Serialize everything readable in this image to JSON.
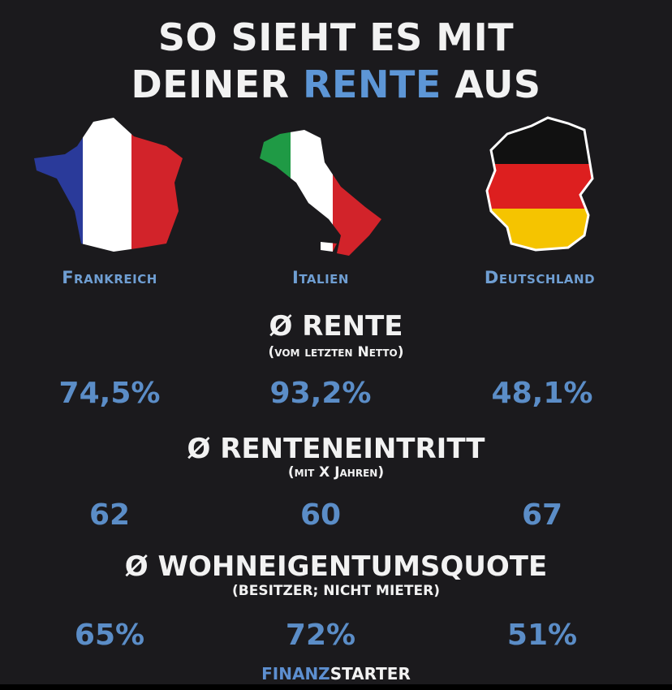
{
  "title": {
    "line1": "SO SIEHT ES MIT",
    "line2_prefix": "DEINER ",
    "line2_accent": "RENTE",
    "line2_suffix": " AUS"
  },
  "colors": {
    "background": "#1b1a1d",
    "accent": "#5d96d6",
    "value": "#5b8dc7"
  },
  "countries": [
    {
      "name": "Frankreich",
      "icon": "france-flag-map"
    },
    {
      "name": "Italien",
      "icon": "italy-flag-map"
    },
    {
      "name": "Deutschland",
      "icon": "germany-flag-map"
    }
  ],
  "sections": [
    {
      "title": "Ø RENTE",
      "subtitle": "(vom letzten Netto)",
      "values": [
        "74,5%",
        "93,2%",
        "48,1%"
      ]
    },
    {
      "title": "Ø RENTENEINTRITT",
      "subtitle": "(mit X Jahren)",
      "values": [
        "62",
        "60",
        "67"
      ]
    },
    {
      "title": "Ø WOHNEIGENTUMSQUOTE",
      "subtitle": "(BESITZER; NICHT MIETER)",
      "values": [
        "65%",
        "72%",
        "51%"
      ]
    }
  ],
  "footer": {
    "brand_accent": "FINANZ",
    "brand_rest": "STARTER"
  }
}
